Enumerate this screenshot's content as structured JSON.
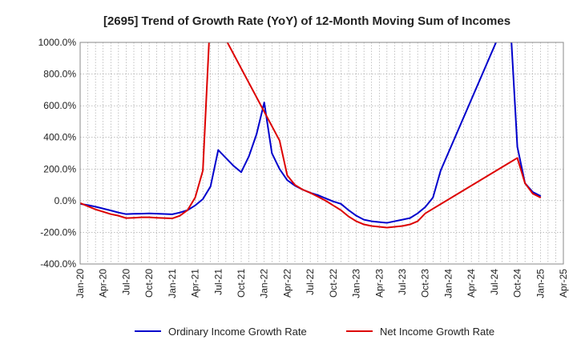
{
  "chart_data": {
    "type": "line",
    "title": "[2695]  Trend of Growth Rate (YoY) of 12-Month Moving Sum of Incomes",
    "xlabel": "",
    "ylabel": "",
    "ylim": [
      -400,
      1000
    ],
    "y_ticks": [
      -400,
      -200,
      0,
      200,
      400,
      600,
      800,
      1000
    ],
    "y_tick_labels": [
      "-400.0%",
      "-200.0%",
      "0.0%",
      "200.0%",
      "400.0%",
      "600.0%",
      "800.0%",
      "1000.0%"
    ],
    "x_range": [
      "2020-01",
      "2025-04"
    ],
    "x_tick_labels": [
      "Jan-20",
      "Apr-20",
      "Jul-20",
      "Oct-20",
      "Jan-21",
      "Apr-21",
      "Jul-21",
      "Oct-21",
      "Jan-22",
      "Apr-22",
      "Jul-22",
      "Oct-22",
      "Jan-23",
      "Apr-23",
      "Jul-23",
      "Oct-23",
      "Jan-24",
      "Apr-24",
      "Jul-24",
      "Oct-24",
      "Jan-25",
      "Apr-25"
    ],
    "grid": true,
    "legend_position": "bottom",
    "series": [
      {
        "name": "Ordinary Income Growth Rate",
        "color": "#0000cc",
        "x": [
          "2020-01",
          "2020-02",
          "2020-03",
          "2020-04",
          "2020-05",
          "2020-06",
          "2020-07",
          "2020-08",
          "2020-09",
          "2020-10",
          "2020-11",
          "2020-12",
          "2021-01",
          "2021-02",
          "2021-03",
          "2021-04",
          "2021-05",
          "2021-06",
          "2021-07",
          "2021-08",
          "2021-09",
          "2021-10",
          "2021-11",
          "2021-12",
          "2022-01",
          "2022-02",
          "2022-03",
          "2022-04",
          "2022-05",
          "2022-06",
          "2022-07",
          "2022-08",
          "2022-09",
          "2022-10",
          "2022-11",
          "2022-12",
          "2023-01",
          "2023-02",
          "2023-03",
          "2023-04",
          "2023-05",
          "2023-06",
          "2023-07",
          "2023-08",
          "2023-09",
          "2023-10",
          "2023-11",
          "2023-12",
          "2024-09",
          "2024-10",
          "2024-11",
          "2024-12",
          "2025-01"
        ],
        "values": [
          -20,
          -28,
          -38,
          -50,
          -62,
          -75,
          -85,
          -83,
          -82,
          -80,
          -82,
          -84,
          -86,
          -75,
          -60,
          -30,
          10,
          90,
          320,
          270,
          220,
          180,
          280,
          420,
          620,
          300,
          200,
          130,
          95,
          70,
          50,
          35,
          15,
          -5,
          -20,
          -60,
          -95,
          -120,
          -130,
          -135,
          -140,
          -130,
          -120,
          -110,
          -80,
          -40,
          20,
          190,
          1200,
          340,
          110,
          55,
          30
        ]
      },
      {
        "name": "Net Income Growth Rate",
        "color": "#dd0000",
        "x": [
          "2020-01",
          "2020-02",
          "2020-03",
          "2020-04",
          "2020-05",
          "2020-06",
          "2020-07",
          "2020-08",
          "2020-09",
          "2020-10",
          "2020-11",
          "2020-12",
          "2021-01",
          "2021-02",
          "2021-03",
          "2021-04",
          "2021-05",
          "2021-06",
          "2022-03",
          "2022-04",
          "2022-05",
          "2022-06",
          "2022-07",
          "2022-08",
          "2022-09",
          "2022-10",
          "2022-11",
          "2022-12",
          "2023-01",
          "2023-02",
          "2023-03",
          "2023-04",
          "2023-05",
          "2023-06",
          "2023-07",
          "2023-08",
          "2023-09",
          "2023-10",
          "2024-10",
          "2024-11",
          "2024-12",
          "2025-01"
        ],
        "values": [
          -15,
          -35,
          -55,
          -70,
          -85,
          -95,
          -110,
          -108,
          -105,
          -105,
          -108,
          -110,
          -112,
          -95,
          -60,
          20,
          190,
          1200,
          380,
          160,
          100,
          70,
          50,
          25,
          0,
          -30,
          -60,
          -100,
          -130,
          -150,
          -160,
          -165,
          -170,
          -165,
          -160,
          -150,
          -130,
          -80,
          270,
          110,
          45,
          20
        ]
      }
    ]
  }
}
